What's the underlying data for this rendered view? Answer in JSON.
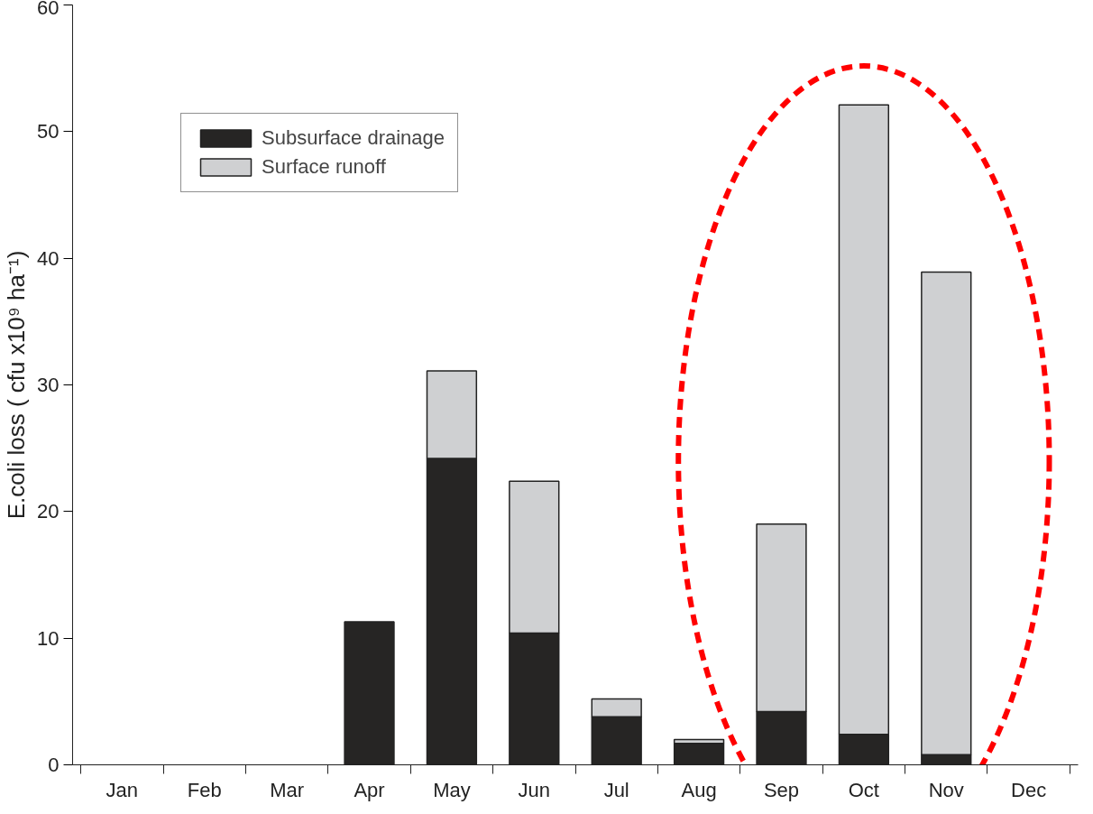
{
  "chart_data": {
    "type": "bar",
    "stacked": true,
    "ylabel": "E.coli loss ( cfu x10⁹ ha⁻¹)",
    "categories": [
      "Jan",
      "Feb",
      "Mar",
      "Apr",
      "May",
      "Jun",
      "Jul",
      "Aug",
      "Sep",
      "Oct",
      "Nov",
      "Dec"
    ],
    "series": [
      {
        "name": "Subsurface drainage",
        "color": "#262524",
        "values": [
          null,
          null,
          null,
          11.3,
          24.2,
          10.4,
          3.8,
          1.7,
          4.2,
          2.4,
          0.8,
          null
        ]
      },
      {
        "name": "Surface runoff",
        "color": "#cfd0d2",
        "values": [
          null,
          null,
          null,
          null,
          6.9,
          12.0,
          1.4,
          0.3,
          14.8,
          49.7,
          38.1,
          null
        ]
      }
    ],
    "ylim": [
      0,
      60
    ],
    "yticks": [
      0,
      10,
      20,
      30,
      40,
      50,
      60
    ],
    "grid": false,
    "legend": "top left"
  }
}
